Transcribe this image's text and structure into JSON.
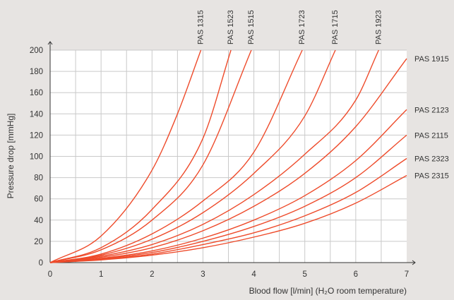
{
  "chart_data": {
    "type": "line",
    "xlabel": "Blood flow [l/min] (H₂O room temperature)",
    "ylabel": "Pressure drop [mmHg]",
    "xlim": [
      0,
      7
    ],
    "ylim": [
      0,
      200
    ],
    "x_ticks": [
      0,
      1,
      2,
      3,
      4,
      5,
      6,
      7
    ],
    "y_ticks": [
      0,
      20,
      40,
      60,
      80,
      100,
      120,
      140,
      160,
      180,
      200
    ],
    "grid": true,
    "line_color": "#ee4b2b",
    "series": [
      {
        "name": "PAS 1315",
        "label_position": "top",
        "x": [
          0,
          1,
          2,
          2.5,
          2.96
        ],
        "y": [
          0,
          25,
          87,
          140,
          200
        ]
      },
      {
        "name": "PAS 1523",
        "label_position": "top",
        "x": [
          0,
          1,
          2,
          3,
          3.55
        ],
        "y": [
          0,
          14,
          50,
          117,
          200
        ]
      },
      {
        "name": "PAS 1515",
        "label_position": "top",
        "x": [
          0,
          1,
          2,
          3,
          3.95
        ],
        "y": [
          0,
          12,
          40,
          92,
          200
        ]
      },
      {
        "name": "PAS 1723",
        "label_position": "top",
        "x": [
          0,
          1,
          2,
          3,
          4,
          4.95
        ],
        "y": [
          0,
          8,
          27,
          58,
          104,
          200
        ]
      },
      {
        "name": "PAS 1715",
        "label_position": "top",
        "x": [
          0,
          1,
          2,
          3,
          4,
          5,
          5.6
        ],
        "y": [
          0,
          7,
          22,
          47,
          84,
          138,
          200
        ]
      },
      {
        "name": "PAS 1923",
        "label_position": "top",
        "x": [
          0,
          1,
          2,
          3,
          4,
          5,
          6,
          6.45
        ],
        "y": [
          0,
          6,
          17,
          36,
          64,
          102,
          153,
          200
        ]
      },
      {
        "name": "PAS 1915",
        "label_position": "right",
        "x": [
          0,
          1,
          2,
          3,
          4,
          5,
          6,
          7
        ],
        "y": [
          0,
          5,
          14,
          30,
          53,
          84,
          128,
          192
        ]
      },
      {
        "name": "PAS 2123",
        "label_position": "right",
        "x": [
          0,
          1,
          2,
          3,
          4,
          5,
          6,
          7
        ],
        "y": [
          0,
          4,
          11,
          23,
          40,
          63,
          96,
          144
        ]
      },
      {
        "name": "PAS 2115",
        "label_position": "right",
        "x": [
          0,
          1,
          2,
          3,
          4,
          5,
          6,
          7
        ],
        "y": [
          0,
          3.5,
          9.5,
          20,
          34,
          53,
          80,
          120
        ]
      },
      {
        "name": "PAS 2323",
        "label_position": "right",
        "x": [
          0,
          1,
          2,
          3,
          4,
          5,
          6,
          7
        ],
        "y": [
          0,
          3,
          8,
          17,
          28,
          44,
          66,
          98
        ]
      },
      {
        "name": "PAS 2315",
        "label_position": "right",
        "x": [
          0,
          1,
          2,
          3,
          4,
          5,
          6,
          7
        ],
        "y": [
          0,
          2.5,
          7,
          14,
          24,
          37,
          56,
          82
        ]
      }
    ]
  }
}
